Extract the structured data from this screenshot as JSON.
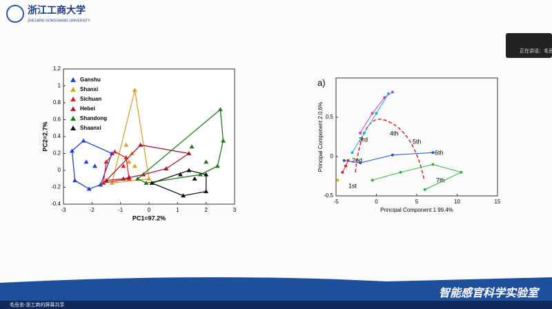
{
  "header": {
    "university": "浙江工商大学",
    "university_en": "ZHEJIANG GONGSHANG UNIVERSITY"
  },
  "overlay": {
    "speaking": "正在讲话：毛岳"
  },
  "footer": {
    "share": "毛岳忠-浙工商的屏幕共享",
    "lab": "智能感官科学实验室"
  },
  "chart_data": [
    {
      "type": "scatter",
      "xlabel": "PC1=97.2%",
      "ylabel": "PC2=2.7%",
      "xlim": [
        -3,
        3
      ],
      "xticks": [
        -3,
        -2,
        -1,
        0,
        1,
        2,
        3
      ],
      "ylim": [
        -0.4,
        1.2
      ],
      "yticks": [
        -0.4,
        -0.2,
        0,
        0.2,
        0.4,
        0.6,
        0.8,
        1,
        1.2
      ],
      "legend": "upper left",
      "series": [
        {
          "name": "Ganshu",
          "color": "#1f3fd0",
          "x": [
            -2.7,
            -2.3,
            -1.3,
            -1.7,
            -2.1,
            -2.6,
            -2.2,
            -1.9
          ],
          "values": [
            0.23,
            0.35,
            0.2,
            -0.17,
            -0.22,
            -0.12,
            0.1,
            0.05
          ]
        },
        {
          "name": "Shanxi",
          "color": "#d9a030",
          "x": [
            -0.5,
            -1.3,
            0,
            -0.8,
            -0.6,
            -0.7,
            -0.5
          ],
          "values": [
            0.95,
            -0.15,
            -0.1,
            0.3,
            0.2,
            0.1,
            0.05
          ]
        },
        {
          "name": "Sichuan",
          "color": "#e02020",
          "x": [
            -1.5,
            -1.6,
            -0.8,
            -0.7,
            -1.2,
            -0.9
          ],
          "values": [
            0.1,
            -0.15,
            0.15,
            -0.1,
            0.22,
            0.05
          ]
        },
        {
          "name": "Hebei",
          "color": "#a01c2c",
          "x": [
            -1.5,
            -0.7,
            -0.3,
            1.4,
            0.6,
            -0.2,
            -0.9
          ],
          "values": [
            -0.12,
            -0.08,
            0.3,
            0.2,
            0.02,
            -0.05,
            -0.1
          ]
        },
        {
          "name": "Shandong",
          "color": "#1a7a1a",
          "x": [
            -0.4,
            2.5,
            2.6,
            2.4,
            1.8,
            -0.1,
            1.5,
            2.0
          ],
          "values": [
            -0.1,
            0.72,
            0.35,
            0.05,
            -0.05,
            -0.15,
            0.28,
            0.1
          ]
        },
        {
          "name": "Shaanxi",
          "color": "#111111",
          "x": [
            0.1,
            1.2,
            2.0,
            1.4,
            2.0,
            1.1,
            1.6
          ],
          "values": [
            -0.15,
            -0.3,
            -0.25,
            0.0,
            -0.05,
            -0.05,
            -0.1
          ]
        }
      ]
    },
    {
      "type": "line",
      "panel": "a)",
      "xlabel": "Principal Component 1  99.4%",
      "ylabel": "Principal Component 2  0.6%",
      "xlim": [
        -5,
        15
      ],
      "xticks": [
        -5,
        0,
        5,
        10,
        15
      ],
      "ylim": [
        -0.5,
        1
      ],
      "yticks": [
        -0.5,
        0,
        0.5
      ],
      "annotations": [
        "1st",
        "2nd",
        "3rd",
        "4th",
        "5th",
        "6th",
        "7th"
      ],
      "series": [
        {
          "color": "#c040c0",
          "x": [
            -2,
            -0.5,
            1,
            2
          ],
          "values": [
            0.3,
            0.55,
            0.75,
            0.82
          ]
        },
        {
          "color": "#20b0c0",
          "x": [
            -3,
            -1.5,
            0,
            1.5
          ],
          "values": [
            0.05,
            0.3,
            0.55,
            0.8
          ]
        },
        {
          "color": "#2050d0",
          "x": [
            -4,
            -2,
            2,
            7
          ],
          "values": [
            -0.05,
            -0.08,
            0.02,
            0.05
          ]
        },
        {
          "color": "#30b040",
          "x": [
            -0.5,
            3,
            7,
            10.5,
            6
          ],
          "values": [
            -0.3,
            -0.2,
            -0.1,
            -0.2,
            -0.42
          ]
        },
        {
          "color": "#d02020",
          "x": [
            -4.2,
            -3.8,
            -3.5
          ],
          "values": [
            -0.2,
            -0.12,
            -0.05
          ]
        },
        {
          "color": "#d0b020",
          "x": [
            -4.8
          ],
          "values": [
            -0.3
          ]
        }
      ]
    }
  ]
}
